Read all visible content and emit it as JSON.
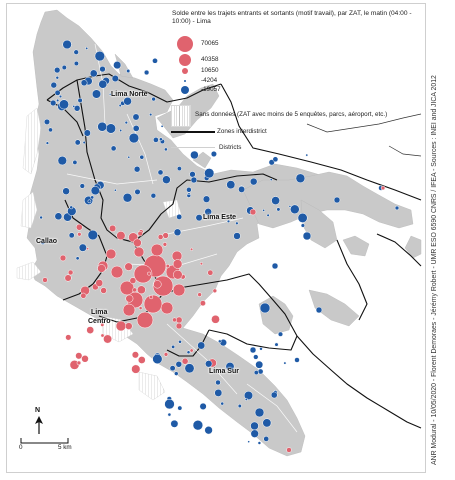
{
  "legend": {
    "title": "Solde entre les trajets entrants et sortants (motif travail), par ZAT, le matin (04:00 - 10:00) - Lima",
    "sizes": [
      {
        "value": "70065",
        "color": "#e0636e",
        "radius": 8
      },
      {
        "value": "40358",
        "color": "#e0636e",
        "radius": 6
      },
      {
        "value": "10650",
        "color": "#e0636e",
        "radius": 3.2
      },
      {
        "value": "-4204",
        "color": "#1f5aa6",
        "radius": 1.4
      },
      {
        "value": "-19057",
        "color": "#1f5aa6",
        "radius": 4.2
      }
    ],
    "no_data": "Sans données (ZAT avec moins de 5 enquêtes, parcs, aéroport, etc.)",
    "zones": "Zones interdistrict",
    "districts": "Districts"
  },
  "labels": {
    "lima_norte": "Lima Norte",
    "lima_este": "Lima Este",
    "callao": "Callao",
    "lima_centro_1": "Lima",
    "lima_centro_2": "Centro",
    "lima_sur": "Lima Sur"
  },
  "credit": "ANR Modural - 10/05/2020 - Florent Demoraes - Jérémy Robert - UMR ESO 6590 CNRS / IFEA - Sources : INEI and JICA 2012",
  "north": "N",
  "scale": {
    "start": "0",
    "end": "5 km"
  },
  "colors": {
    "positive": "#e0636e",
    "negative": "#1f5aa6",
    "urban": "#c9c9c9",
    "border": "#111111"
  }
}
